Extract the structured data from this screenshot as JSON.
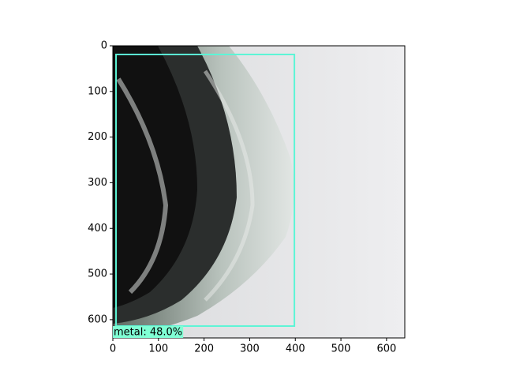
{
  "chart_data": {
    "type": "image",
    "xlim": [
      0,
      640
    ],
    "ylim": [
      640,
      0
    ],
    "xticks": [
      0,
      100,
      200,
      300,
      400,
      500,
      600
    ],
    "yticks": [
      0,
      100,
      200,
      300,
      400,
      500,
      600
    ],
    "boxes": [
      {
        "label": "metal: 48.0%",
        "x0": 7,
        "y0": 19,
        "x1": 398,
        "y1": 614,
        "color": "#5cf5d6",
        "label_color": "#80ffd4"
      }
    ]
  }
}
